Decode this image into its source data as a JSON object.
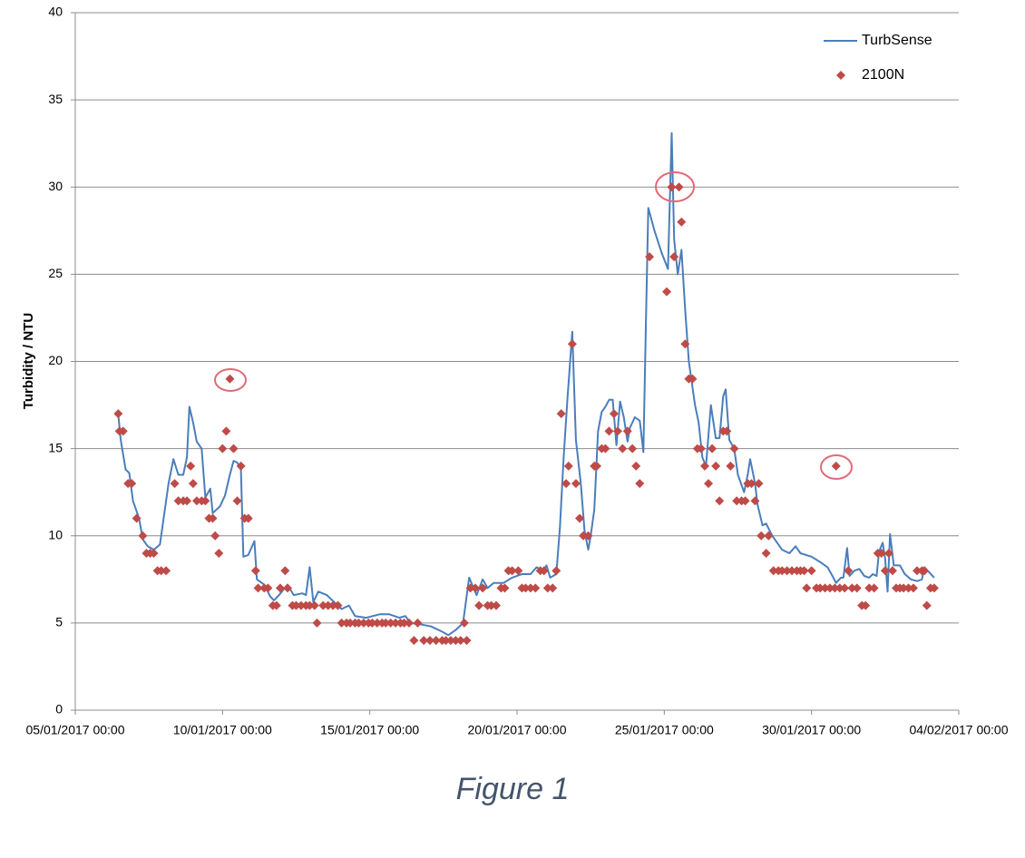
{
  "chart_data": {
    "type": "line",
    "y_label": "Turbidity / NTU",
    "caption": "Figure 1",
    "ylim": [
      0,
      40
    ],
    "yticks": [
      0,
      5,
      10,
      15,
      20,
      25,
      30,
      35,
      40
    ],
    "xlim": [
      "05/01/2017 00:00",
      "04/02/2017 00:00"
    ],
    "xticks": [
      "05/01/2017 00:00",
      "10/01/2017 00:00",
      "15/01/2017 00:00",
      "20/01/2017 00:00",
      "25/01/2017 00:00",
      "30/01/2017 00:00",
      "04/02/2017 00:00"
    ],
    "grid": true,
    "legend": "upper right",
    "series": [
      {
        "name": "TurbSense",
        "type": "line",
        "color": "#4a7ebb",
        "x": [
          "06/01/2017 11:00",
          "06/01/2017 13:00",
          "06/01/2017 17:00",
          "06/01/2017 20:00",
          "06/01/2017 23:00",
          "07/01/2017 04:00",
          "07/01/2017 07:00",
          "07/01/2017 11:00",
          "07/01/2017 16:00",
          "07/01/2017 21:00",
          "08/01/2017 00:00",
          "08/01/2017 04:00",
          "08/01/2017 08:00",
          "08/01/2017 12:00",
          "08/01/2017 16:00",
          "08/01/2017 19:00",
          "08/01/2017 21:00",
          "09/01/2017 00:00",
          "09/01/2017 03:00",
          "09/01/2017 07:00",
          "09/01/2017 10:00",
          "09/01/2017 14:00",
          "09/01/2017 16:00",
          "09/01/2017 22:00",
          "10/01/2017 02:00",
          "10/01/2017 06:00",
          "10/01/2017 09:00",
          "10/01/2017 12:00",
          "10/01/2017 15:00",
          "10/01/2017 17:00",
          "10/01/2017 21:00",
          "11/01/2017 02:00",
          "11/01/2017 04:00",
          "11/01/2017 10:00",
          "11/01/2017 15:00",
          "11/01/2017 18:00",
          "11/01/2017 22:00",
          "12/01/2017 05:00",
          "12/01/2017 10:00",
          "12/01/2017 17:00",
          "12/01/2017 20:00",
          "12/01/2017 23:00",
          "13/01/2017 02:00",
          "13/01/2017 06:00",
          "13/01/2017 13:00",
          "13/01/2017 19:00",
          "14/01/2017 01:00",
          "14/01/2017 07:00",
          "14/01/2017 12:00",
          "14/01/2017 21:00",
          "15/01/2017 08:00",
          "15/01/2017 16:00",
          "16/01/2017 00:00",
          "16/01/2017 05:00",
          "16/01/2017 09:00",
          "16/01/2017 19:00",
          "17/01/2017 02:00",
          "17/01/2017 11:00",
          "17/01/2017 16:00",
          "17/01/2017 22:00",
          "18/01/2017 04:00",
          "18/01/2017 09:00",
          "18/01/2017 15:00",
          "18/01/2017 20:00",
          "19/01/2017 00:00",
          "19/01/2017 05:00",
          "19/01/2017 13:00",
          "19/01/2017 20:00",
          "20/01/2017 04:00",
          "20/01/2017 11:00",
          "20/01/2017 16:00",
          "20/01/2017 21:00",
          "21/01/2017 00:00",
          "21/01/2017 03:00",
          "21/01/2017 08:00",
          "21/01/2017 11:00",
          "21/01/2017 14:00",
          "21/01/2017 17:00",
          "21/01/2017 21:00",
          "22/01/2017 00:00",
          "22/01/2017 04:00",
          "22/01/2017 07:00",
          "22/01/2017 10:00",
          "22/01/2017 12:00",
          "22/01/2017 15:00",
          "22/01/2017 18:00",
          "22/01/2017 21:00",
          "23/01/2017 00:00",
          "23/01/2017 03:00",
          "23/01/2017 06:00",
          "23/01/2017 09:00",
          "23/01/2017 12:00",
          "23/01/2017 15:00",
          "23/01/2017 18:00",
          "23/01/2017 20:00",
          "24/01/2017 00:00",
          "24/01/2017 04:00",
          "24/01/2017 07:00",
          "24/01/2017 09:00",
          "24/01/2017 11:00",
          "24/01/2017 16:00",
          "24/01/2017 22:00",
          "25/01/2017 03:00",
          "25/01/2017 06:00",
          "25/01/2017 08:00",
          "25/01/2017 11:00",
          "25/01/2017 14:00",
          "25/01/2017 17:00",
          "25/01/2017 20:00",
          "26/01/2017 01:00",
          "26/01/2017 04:00",
          "26/01/2017 07:00",
          "26/01/2017 10:00",
          "26/01/2017 14:00",
          "26/01/2017 18:00",
          "26/01/2017 21:00",
          "27/01/2017 00:00",
          "27/01/2017 02:00",
          "27/01/2017 05:00",
          "27/01/2017 09:00",
          "27/01/2017 12:00",
          "27/01/2017 17:00",
          "27/01/2017 20:00",
          "27/01/2017 22:00",
          "28/01/2017 02:00",
          "28/01/2017 04:00",
          "28/01/2017 08:00",
          "28/01/2017 11:00",
          "28/01/2017 16:00",
          "28/01/2017 20:00",
          "29/01/2017 00:00",
          "29/01/2017 06:00",
          "29/01/2017 11:00",
          "29/01/2017 15:00",
          "30/01/2017 00:00",
          "30/01/2017 07:00",
          "30/01/2017 13:00",
          "30/01/2017 17:00",
          "30/01/2017 20:00",
          "31/01/2017 00:00",
          "31/01/2017 02:00",
          "31/01/2017 05:00",
          "31/01/2017 07:00",
          "31/01/2017 11:00",
          "31/01/2017 15:00",
          "31/01/2017 19:00",
          "31/01/2017 23:00",
          "01/02/2017 02:00",
          "01/02/2017 05:00",
          "01/02/2017 07:00",
          "01/02/2017 10:00",
          "01/02/2017 12:00",
          "01/02/2017 14:00",
          "01/02/2017 16:00",
          "01/02/2017 19:00",
          "02/02/2017 00:00",
          "02/02/2017 04:00",
          "02/02/2017 09:00",
          "02/02/2017 14:00",
          "02/02/2017 18:00",
          "02/02/2017 20:00",
          "03/02/2017 04:00"
        ],
        "values": [
          17,
          15.5,
          13.8,
          13.6,
          12,
          11,
          9.8,
          9.4,
          9.2,
          9.5,
          11,
          13,
          14.4,
          13.5,
          13.5,
          14.5,
          17.4,
          16.5,
          15.4,
          15,
          12.2,
          12.7,
          11.3,
          11.7,
          12.3,
          13.5,
          14.3,
          14.2,
          13.8,
          8.8,
          8.9,
          9.7,
          7.5,
          7.2,
          6.5,
          6.3,
          6.6,
          7.2,
          6.6,
          6.7,
          6.6,
          8.2,
          6.2,
          6.8,
          6.6,
          6.2,
          5.8,
          6,
          5.4,
          5.3,
          5.5,
          5.5,
          5.3,
          5.4,
          5,
          4.9,
          4.8,
          4.5,
          4.3,
          4.6,
          5,
          7.6,
          6.6,
          7.5,
          7,
          7.3,
          7.3,
          7.6,
          7.8,
          7.8,
          8.2,
          8,
          8.3,
          7.6,
          7.8,
          10.5,
          14.5,
          17.8,
          21.7,
          15.5,
          13,
          10.3,
          9.2,
          10,
          11.5,
          16,
          17.1,
          17.4,
          17.8,
          17.8,
          15.2,
          17.7,
          16.8,
          15.4,
          16.2,
          16.8,
          16.6,
          14.8,
          22,
          28.8,
          27.5,
          26.2,
          25.3,
          33.1,
          27,
          25,
          26.4,
          23,
          20,
          17.5,
          16.5,
          14.5,
          14,
          17.5,
          15.6,
          15.6,
          18,
          18.4,
          15.5,
          15,
          13.5,
          12.5,
          13.5,
          14.4,
          13,
          11.8,
          10.6,
          10.7,
          10,
          9.6,
          9.2,
          9,
          9.4,
          9,
          8.8,
          8.5,
          8.2,
          7.7,
          7.3,
          7.6,
          7.6,
          9.3,
          7.7,
          8,
          8.1,
          7.7,
          7.6,
          7.8,
          7.7,
          9.1,
          9.6,
          8.7,
          6.8,
          10.1,
          8.3,
          8.3,
          7.8,
          7.5,
          7.4,
          7.5,
          8.2,
          7.6
        ]
      },
      {
        "name": "2100N",
        "type": "scatter",
        "marker": "diamond",
        "color": "#be4b48",
        "x": [
          "06/01/2017 11:00",
          "06/01/2017 12:00",
          "06/01/2017 15:00",
          "06/01/2017 19:00",
          "06/01/2017 22:00",
          "07/01/2017 02:00",
          "07/01/2017 07:00",
          "07/01/2017 10:00",
          "07/01/2017 13:00",
          "07/01/2017 16:00",
          "07/01/2017 19:00",
          "07/01/2017 22:00",
          "08/01/2017 02:00",
          "08/01/2017 09:00",
          "08/01/2017 12:00",
          "08/01/2017 16:00",
          "08/01/2017 19:00",
          "08/01/2017 22:00",
          "09/01/2017 00:00",
          "09/01/2017 03:00",
          "09/01/2017 07:00",
          "09/01/2017 10:00",
          "09/01/2017 13:00",
          "09/01/2017 16:00",
          "09/01/2017 18:00",
          "09/01/2017 21:00",
          "10/01/2017 00:00",
          "10/01/2017 03:00",
          "10/01/2017 06:00",
          "10/01/2017 09:00",
          "10/01/2017 12:00",
          "10/01/2017 15:00",
          "10/01/2017 18:00",
          "10/01/2017 21:00",
          "11/01/2017 03:00",
          "11/01/2017 05:00",
          "11/01/2017 10:00",
          "11/01/2017 13:00",
          "11/01/2017 17:00",
          "11/01/2017 20:00",
          "11/01/2017 23:00",
          "12/01/2017 03:00",
          "12/01/2017 05:00",
          "12/01/2017 09:00",
          "12/01/2017 12:00",
          "12/01/2017 16:00",
          "12/01/2017 20:00",
          "12/01/2017 23:00",
          "13/01/2017 03:00",
          "13/01/2017 05:00",
          "13/01/2017 10:00",
          "13/01/2017 14:00",
          "13/01/2017 18:00",
          "13/01/2017 22:00",
          "14/01/2017 01:00",
          "14/01/2017 05:00",
          "14/01/2017 08:00",
          "14/01/2017 12:00",
          "14/01/2017 15:00",
          "14/01/2017 19:00",
          "14/01/2017 23:00",
          "15/01/2017 02:00",
          "15/01/2017 06:00",
          "15/01/2017 10:00",
          "15/01/2017 13:00",
          "15/01/2017 17:00",
          "15/01/2017 21:00",
          "16/01/2017 01:00",
          "16/01/2017 04:00",
          "16/01/2017 08:00",
          "16/01/2017 12:00",
          "16/01/2017 15:00",
          "16/01/2017 20:00",
          "17/01/2017 01:00",
          "17/01/2017 06:00",
          "17/01/2017 11:00",
          "17/01/2017 14:00",
          "17/01/2017 18:00",
          "17/01/2017 22:00",
          "18/01/2017 02:00",
          "18/01/2017 05:00",
          "18/01/2017 07:00",
          "18/01/2017 10:00",
          "18/01/2017 14:00",
          "18/01/2017 17:00",
          "18/01/2017 20:00",
          "19/01/2017 00:00",
          "19/01/2017 03:00",
          "19/01/2017 07:00",
          "19/01/2017 11:00",
          "19/01/2017 14:00",
          "19/01/2017 17:00",
          "19/01/2017 20:00",
          "20/01/2017 01:00",
          "20/01/2017 04:00",
          "20/01/2017 07:00",
          "20/01/2017 11:00",
          "20/01/2017 15:00",
          "20/01/2017 19:00",
          "20/01/2017 22:00",
          "21/01/2017 01:00",
          "21/01/2017 05:00",
          "21/01/2017 08:00",
          "21/01/2017 12:00",
          "21/01/2017 16:00",
          "21/01/2017 18:00",
          "21/01/2017 21:00",
          "22/01/2017 00:00",
          "22/01/2017 03:00",
          "22/01/2017 06:00",
          "22/01/2017 10:00",
          "22/01/2017 15:00",
          "22/01/2017 17:00",
          "22/01/2017 21:00",
          "23/01/2017 00:00",
          "23/01/2017 03:00",
          "23/01/2017 07:00",
          "23/01/2017 10:00",
          "23/01/2017 14:00",
          "23/01/2017 18:00",
          "23/01/2017 22:00",
          "24/01/2017 01:00",
          "24/01/2017 04:00",
          "24/01/2017 12:00",
          "25/01/2017 02:00",
          "25/01/2017 06:00",
          "25/01/2017 08:00",
          "25/01/2017 12:00",
          "25/01/2017 14:00",
          "25/01/2017 17:00",
          "25/01/2017 20:00",
          "25/01/2017 23:00",
          "26/01/2017 03:00",
          "26/01/2017 06:00",
          "26/01/2017 09:00",
          "26/01/2017 12:00",
          "26/01/2017 15:00",
          "26/01/2017 18:00",
          "26/01/2017 21:00",
          "27/01/2017 00:00",
          "27/01/2017 03:00",
          "27/01/2017 06:00",
          "27/01/2017 09:00",
          "27/01/2017 11:00",
          "27/01/2017 15:00",
          "27/01/2017 18:00",
          "27/01/2017 20:00",
          "27/01/2017 23:00",
          "28/01/2017 02:00",
          "28/01/2017 05:00",
          "28/01/2017 07:00",
          "28/01/2017 11:00",
          "28/01/2017 13:00",
          "28/01/2017 17:00",
          "28/01/2017 21:00",
          "29/01/2017 00:00",
          "29/01/2017 04:00",
          "29/01/2017 08:00",
          "29/01/2017 12:00",
          "29/01/2017 15:00",
          "29/01/2017 18:00",
          "29/01/2017 20:00",
          "30/01/2017 00:00",
          "30/01/2017 04:00",
          "30/01/2017 07:00",
          "30/01/2017 11:00",
          "30/01/2017 15:00",
          "30/01/2017 19:00",
          "30/01/2017 20:00",
          "30/01/2017 23:00",
          "31/01/2017 03:00",
          "31/01/2017 06:00",
          "31/01/2017 09:00",
          "31/01/2017 13:00",
          "31/01/2017 17:00",
          "31/01/2017 20:00",
          "31/01/2017 23:00",
          "01/02/2017 03:00",
          "01/02/2017 06:00",
          "01/02/2017 09:00",
          "01/02/2017 12:00",
          "01/02/2017 15:00",
          "01/02/2017 18:00",
          "01/02/2017 21:00",
          "02/02/2017 00:00",
          "02/02/2017 03:00",
          "02/02/2017 07:00",
          "02/02/2017 11:00",
          "02/02/2017 14:00",
          "02/02/2017 18:00",
          "02/02/2017 20:00",
          "02/02/2017 22:00",
          "03/02/2017 01:00",
          "03/02/2017 04:00"
        ],
        "values": [
          17,
          16,
          16,
          13,
          13,
          11,
          10,
          9,
          9,
          9,
          8,
          8,
          8,
          13,
          12,
          12,
          12,
          14,
          13,
          12,
          12,
          12,
          11,
          11,
          10,
          9,
          15,
          16,
          19,
          15,
          12,
          14,
          11,
          11,
          8,
          7,
          7,
          7,
          6,
          6,
          7,
          8,
          7,
          6,
          6,
          6,
          6,
          6,
          6,
          5,
          6,
          6,
          6,
          6,
          5,
          5,
          5,
          5,
          5,
          5,
          5,
          5,
          5,
          5,
          5,
          5,
          5,
          5,
          5,
          5,
          4,
          5,
          4,
          4,
          4,
          4,
          4,
          4,
          4,
          4,
          5,
          4,
          7,
          7,
          6,
          7,
          6,
          6,
          6,
          7,
          7,
          8,
          8,
          8,
          7,
          7,
          7,
          7,
          8,
          8,
          7,
          7,
          8,
          17,
          13,
          14,
          21,
          13,
          11,
          10,
          10,
          14,
          14,
          15,
          15,
          16,
          17,
          16,
          15,
          16,
          15,
          14,
          13,
          26,
          24,
          30,
          26,
          30,
          28,
          21,
          19,
          19,
          15,
          15,
          14,
          13,
          15,
          14,
          12,
          16,
          16,
          14,
          15,
          12,
          12,
          12,
          13,
          13,
          12,
          13,
          10,
          9,
          10,
          8,
          8,
          8,
          8,
          8,
          8,
          8,
          8,
          7,
          8,
          7,
          7,
          7,
          7,
          7,
          14,
          7,
          7,
          8,
          7,
          7,
          6,
          6,
          7,
          7,
          9,
          9,
          8,
          9,
          8,
          7,
          7,
          7,
          7,
          7,
          8,
          8,
          8,
          6,
          7,
          7
        ]
      }
    ]
  }
}
